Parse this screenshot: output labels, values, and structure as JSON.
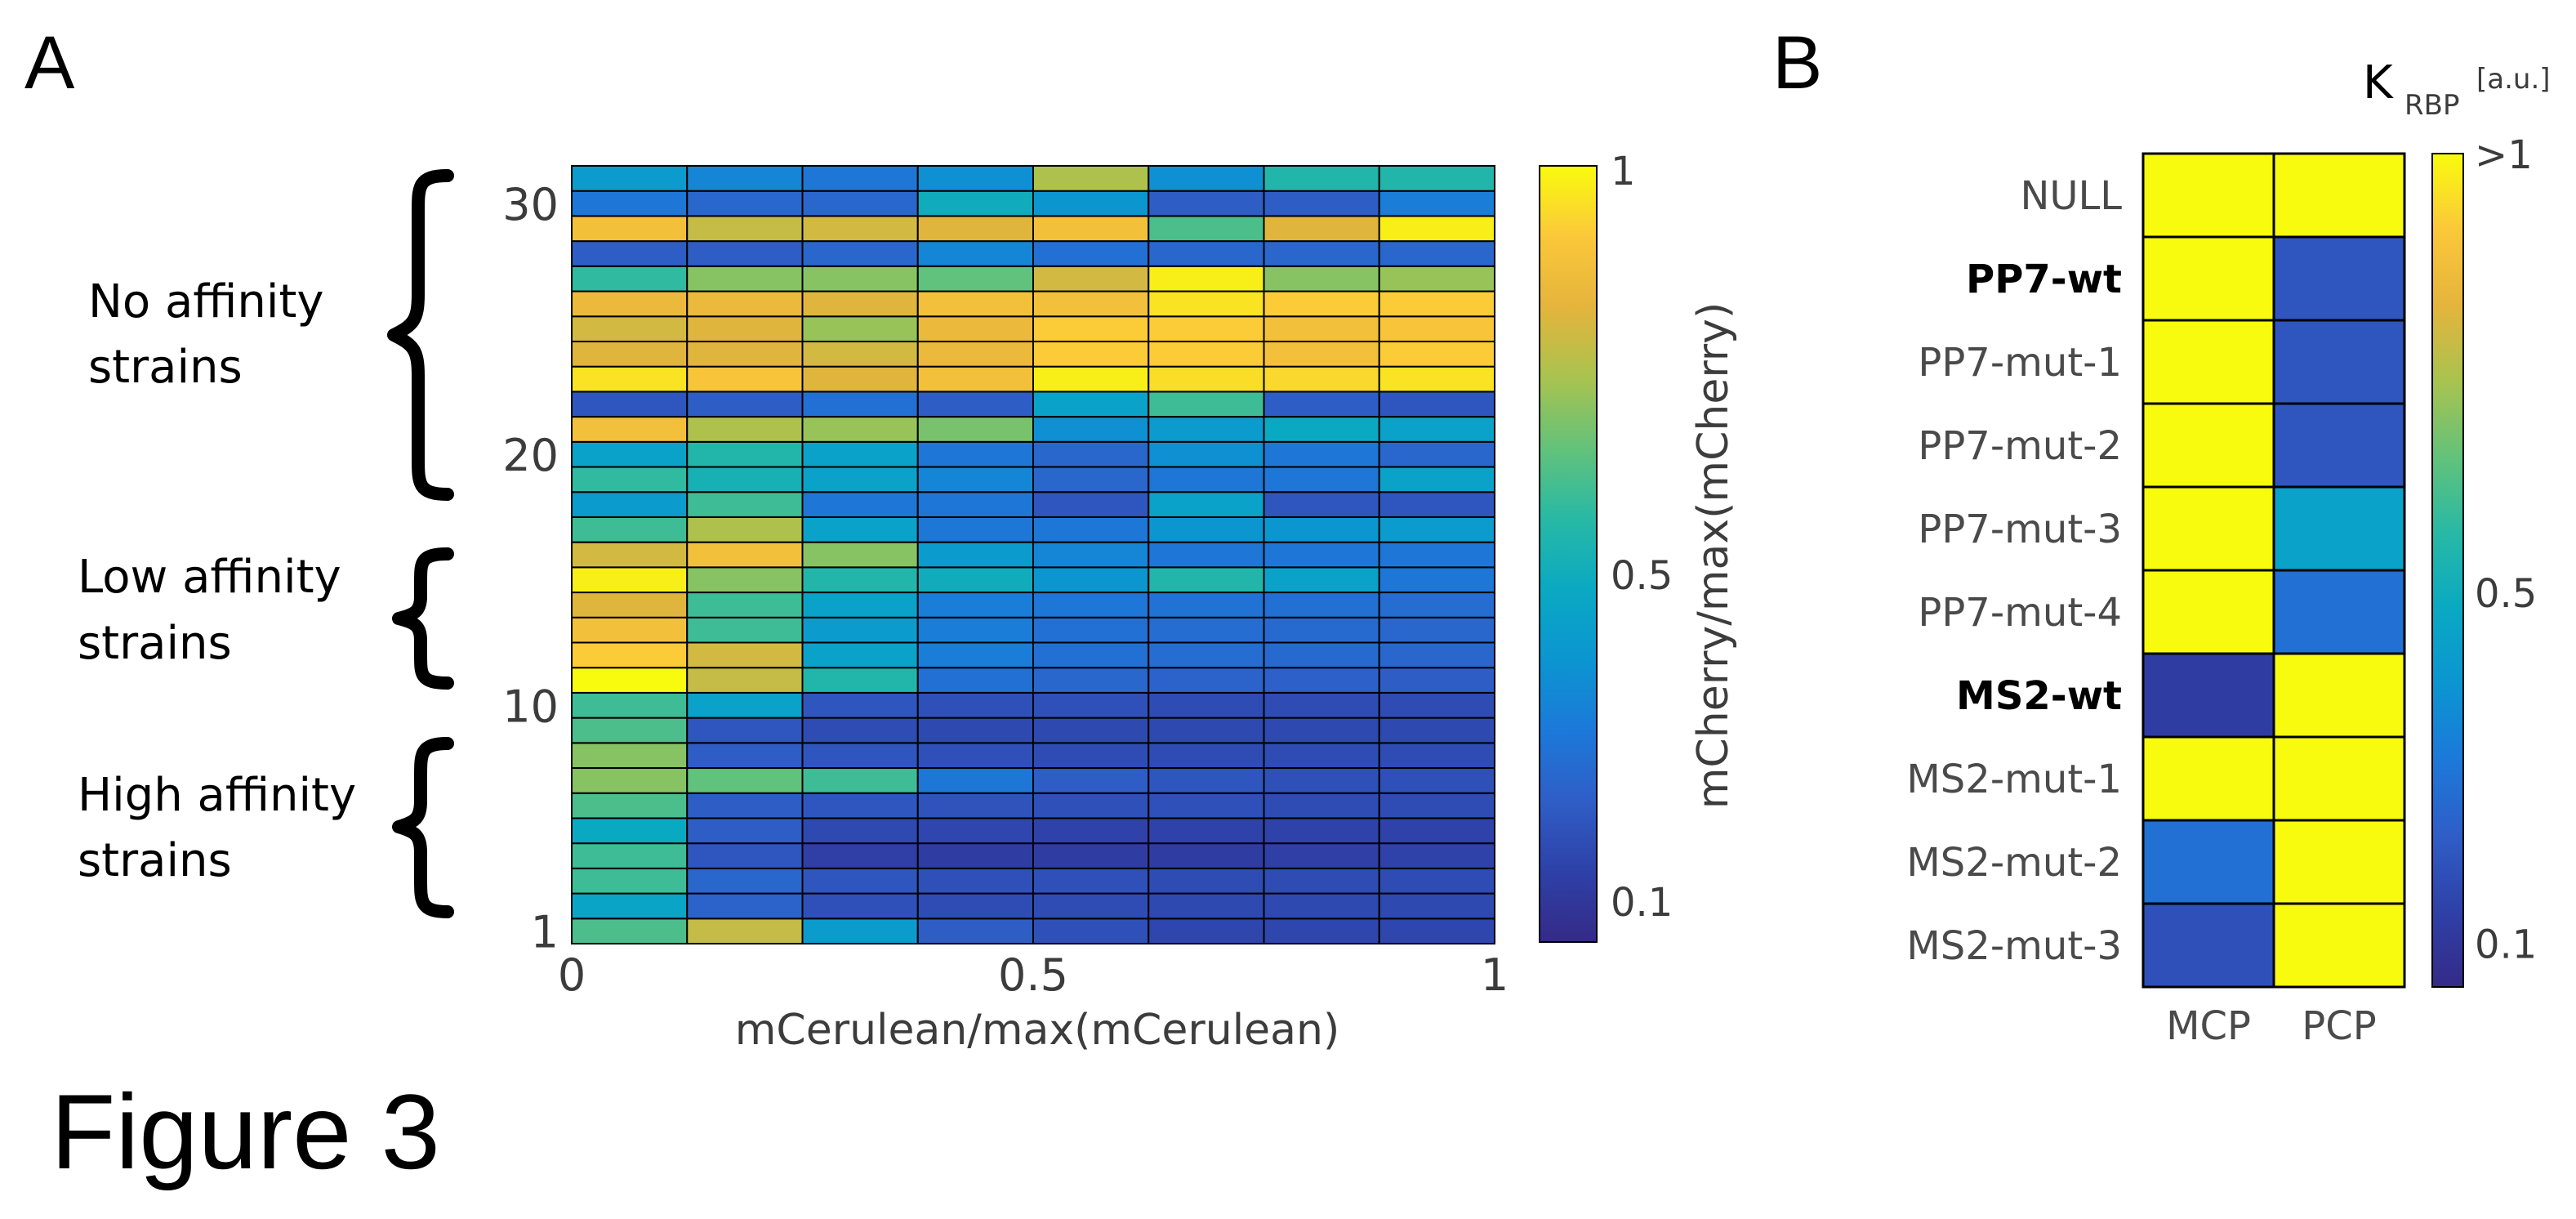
{
  "figure_title": "Figure 3",
  "colors": {
    "parula": [
      "#352a87",
      "#2e41a8",
      "#2f5ec7",
      "#1c79d9",
      "#0b95d1",
      "#0aa9c2",
      "#28b9a5",
      "#63c27a",
      "#a9c34f",
      "#e5b43c",
      "#fbc83a",
      "#f9fb0e"
    ]
  },
  "chart_data": [
    {
      "panel": "A",
      "type": "heatmap",
      "xlabel": "mCerulean/max(mCerulean)",
      "ylabel": "mCherry/max(mCherry)",
      "x_ticks": [
        "0",
        "0.5",
        "1"
      ],
      "x_tick_values": [
        0,
        0.5,
        1
      ],
      "y_ticks": [
        "1",
        "10",
        "20",
        "30"
      ],
      "y_tick_values": [
        1,
        10,
        20,
        30
      ],
      "colorbar": {
        "ticks": [
          "0.1",
          "0.5",
          "1"
        ],
        "tick_values": [
          0.1,
          0.5,
          1.0
        ],
        "range": [
          0.05,
          1.0
        ]
      },
      "groups": [
        {
          "label_line1": "No affinity",
          "label_line2": "strains",
          "rows": [
            20,
            31
          ]
        },
        {
          "label_line1": "Low affinity",
          "label_line2": "strains",
          "rows": [
            10,
            15
          ]
        },
        {
          "label_line1": "High affinity",
          "label_line2": "strains",
          "rows": [
            1,
            8
          ]
        }
      ],
      "n_cols": 8,
      "rows": [
        {
          "strain": 1,
          "values": [
            0.62,
            0.78,
            0.42,
            0.22,
            0.18,
            0.15,
            0.15,
            0.15
          ]
        },
        {
          "strain": 2,
          "values": [
            0.46,
            0.24,
            0.18,
            0.17,
            0.17,
            0.16,
            0.16,
            0.16
          ]
        },
        {
          "strain": 3,
          "values": [
            0.6,
            0.25,
            0.2,
            0.18,
            0.18,
            0.17,
            0.17,
            0.17
          ]
        },
        {
          "strain": 4,
          "values": [
            0.6,
            0.2,
            0.13,
            0.12,
            0.12,
            0.12,
            0.13,
            0.14
          ]
        },
        {
          "strain": 5,
          "values": [
            0.48,
            0.22,
            0.16,
            0.15,
            0.14,
            0.14,
            0.14,
            0.14
          ]
        },
        {
          "strain": 6,
          "values": [
            0.62,
            0.22,
            0.2,
            0.19,
            0.18,
            0.18,
            0.17,
            0.17
          ]
        },
        {
          "strain": 7,
          "values": [
            0.7,
            0.65,
            0.6,
            0.3,
            0.22,
            0.2,
            0.18,
            0.18
          ]
        },
        {
          "strain": 8,
          "values": [
            0.7,
            0.22,
            0.2,
            0.18,
            0.17,
            0.17,
            0.17,
            0.17
          ]
        },
        {
          "strain": 9,
          "values": [
            0.62,
            0.2,
            0.17,
            0.16,
            0.16,
            0.16,
            0.16,
            0.16
          ]
        },
        {
          "strain": 10,
          "values": [
            0.6,
            0.45,
            0.2,
            0.18,
            0.18,
            0.17,
            0.17,
            0.17
          ]
        },
        {
          "strain": 11,
          "values": [
            1.0,
            0.78,
            0.55,
            0.28,
            0.25,
            0.24,
            0.23,
            0.22
          ]
        },
        {
          "strain": 12,
          "values": [
            0.92,
            0.8,
            0.45,
            0.32,
            0.28,
            0.27,
            0.26,
            0.25
          ]
        },
        {
          "strain": 13,
          "values": [
            0.88,
            0.6,
            0.42,
            0.32,
            0.28,
            0.27,
            0.26,
            0.25
          ]
        },
        {
          "strain": 14,
          "values": [
            0.82,
            0.6,
            0.45,
            0.32,
            0.3,
            0.29,
            0.28,
            0.27
          ]
        },
        {
          "strain": 15,
          "values": [
            0.98,
            0.7,
            0.55,
            0.5,
            0.4,
            0.55,
            0.45,
            0.3
          ]
        },
        {
          "strain": 16,
          "values": [
            0.8,
            0.88,
            0.7,
            0.42,
            0.35,
            0.3,
            0.3,
            0.3
          ]
        },
        {
          "strain": 17,
          "values": [
            0.6,
            0.75,
            0.45,
            0.3,
            0.3,
            0.4,
            0.4,
            0.42
          ]
        },
        {
          "strain": 18,
          "values": [
            0.42,
            0.6,
            0.3,
            0.3,
            0.2,
            0.45,
            0.2,
            0.2
          ]
        },
        {
          "strain": 19,
          "values": [
            0.58,
            0.52,
            0.45,
            0.35,
            0.25,
            0.3,
            0.3,
            0.45
          ]
        },
        {
          "strain": 20,
          "values": [
            0.45,
            0.55,
            0.45,
            0.3,
            0.25,
            0.38,
            0.3,
            0.25
          ]
        },
        {
          "strain": 21,
          "values": [
            0.88,
            0.75,
            0.72,
            0.68,
            0.38,
            0.42,
            0.48,
            0.45
          ]
        },
        {
          "strain": 22,
          "values": [
            0.2,
            0.22,
            0.28,
            0.22,
            0.45,
            0.6,
            0.22,
            0.2
          ]
        },
        {
          "strain": 23,
          "values": [
            0.96,
            0.9,
            0.82,
            0.88,
            0.98,
            0.95,
            0.94,
            0.96
          ]
        },
        {
          "strain": 24,
          "values": [
            0.82,
            0.82,
            0.8,
            0.85,
            0.92,
            0.92,
            0.88,
            0.92
          ]
        },
        {
          "strain": 25,
          "values": [
            0.8,
            0.82,
            0.72,
            0.85,
            0.92,
            0.92,
            0.88,
            0.9
          ]
        },
        {
          "strain": 26,
          "values": [
            0.85,
            0.85,
            0.82,
            0.88,
            0.88,
            0.96,
            0.92,
            0.92
          ]
        },
        {
          "strain": 27,
          "values": [
            0.58,
            0.7,
            0.7,
            0.65,
            0.8,
            0.98,
            0.7,
            0.72
          ]
        },
        {
          "strain": 28,
          "values": [
            0.22,
            0.22,
            0.25,
            0.35,
            0.28,
            0.25,
            0.25,
            0.25
          ]
        },
        {
          "strain": 29,
          "values": [
            0.88,
            0.78,
            0.8,
            0.82,
            0.88,
            0.62,
            0.82,
            0.98
          ]
        },
        {
          "strain": 30,
          "values": [
            0.3,
            0.25,
            0.25,
            0.5,
            0.4,
            0.22,
            0.22,
            0.32
          ]
        },
        {
          "strain": 31,
          "values": [
            0.42,
            0.35,
            0.3,
            0.38,
            0.75,
            0.38,
            0.55,
            0.55
          ]
        }
      ]
    },
    {
      "panel": "B",
      "type": "heatmap",
      "title_main": "K",
      "title_sub": "RBP",
      "title_unit": "[a.u.]",
      "columns": [
        "MCP",
        "PCP"
      ],
      "colorbar": {
        "ticks": [
          ">1",
          "0.5",
          "0.1"
        ],
        "tick_values": [
          1.0,
          0.5,
          0.1
        ],
        "range": [
          0.05,
          1.0
        ]
      },
      "rows": [
        {
          "label": "NULL",
          "bold": false,
          "values": [
            1.0,
            1.0
          ]
        },
        {
          "label": "PP7-wt",
          "bold": true,
          "values": [
            1.0,
            0.2
          ]
        },
        {
          "label": "PP7-mut-1",
          "bold": false,
          "values": [
            1.0,
            0.2
          ]
        },
        {
          "label": "PP7-mut-2",
          "bold": false,
          "values": [
            1.0,
            0.2
          ]
        },
        {
          "label": "PP7-mut-3",
          "bold": false,
          "values": [
            1.0,
            0.45
          ]
        },
        {
          "label": "PP7-mut-4",
          "bold": false,
          "values": [
            1.0,
            0.28
          ]
        },
        {
          "label": "MS2-wt",
          "bold": true,
          "values": [
            0.12,
            1.0
          ]
        },
        {
          "label": "MS2-mut-1",
          "bold": false,
          "values": [
            1.0,
            1.0
          ]
        },
        {
          "label": "MS2-mut-2",
          "bold": false,
          "values": [
            0.28,
            1.0
          ]
        },
        {
          "label": "MS2-mut-3",
          "bold": false,
          "values": [
            0.18,
            1.0
          ]
        }
      ]
    }
  ]
}
